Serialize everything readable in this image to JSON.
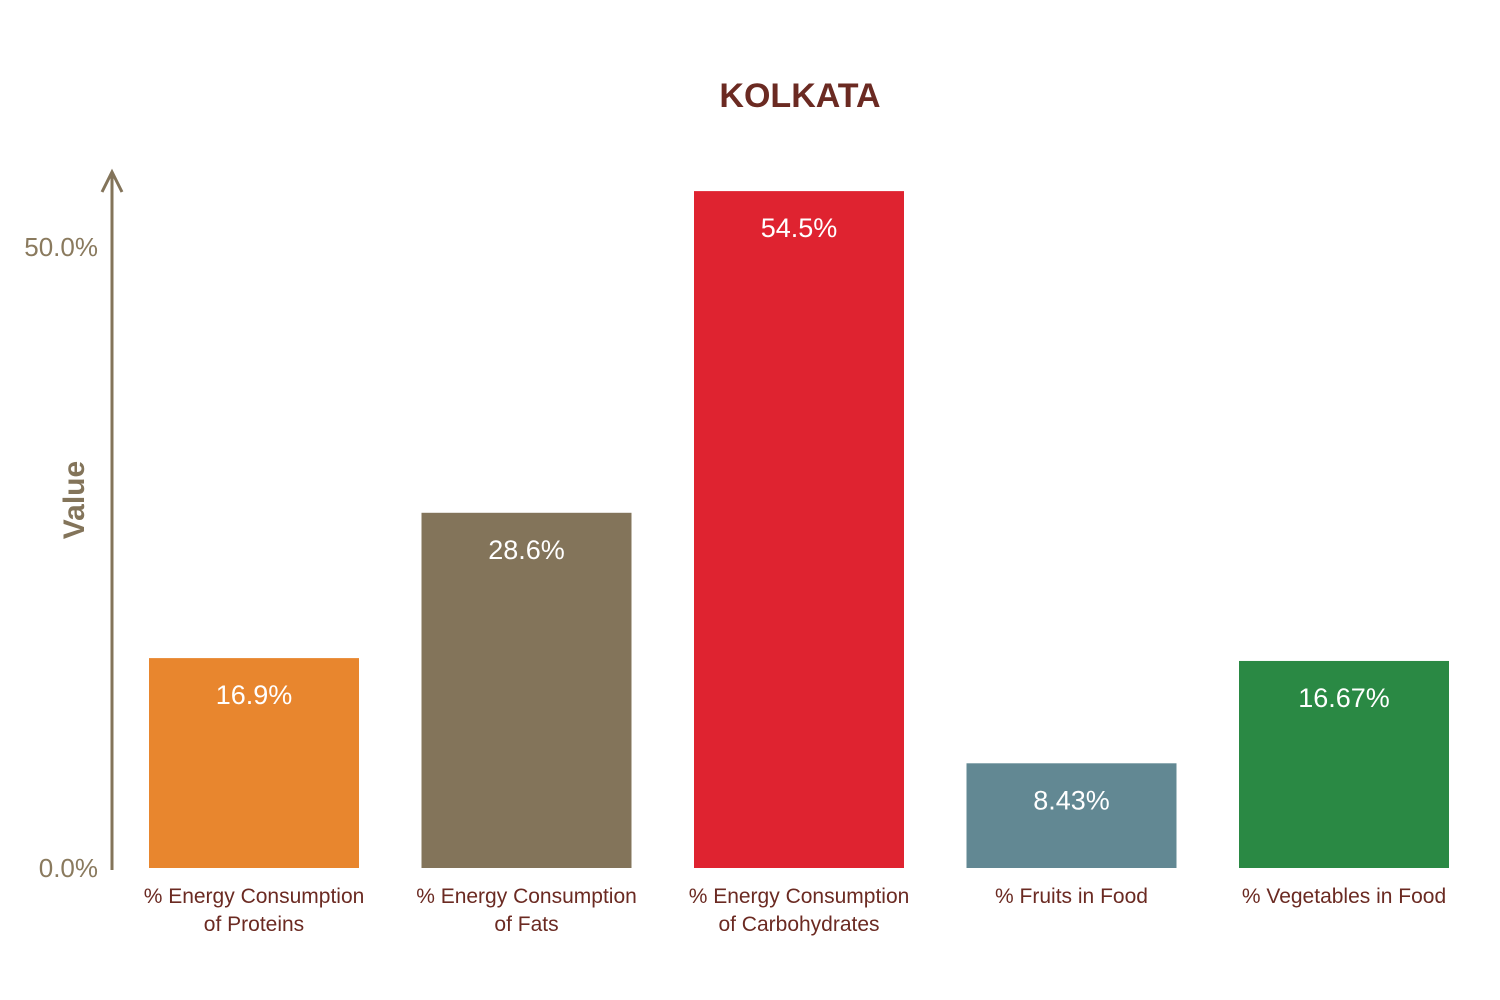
{
  "chart_data": {
    "type": "bar",
    "title": "KOLKATA",
    "ylabel": "Value",
    "xlabel": "",
    "ylim": [
      0,
      50
    ],
    "yticks": [
      {
        "value": 0,
        "label": "0.0%"
      },
      {
        "value": 50,
        "label": "50.0%"
      }
    ],
    "grid": false,
    "categories": [
      [
        "% Energy Consumption",
        "of Proteins"
      ],
      [
        "% Energy Consumption",
        "of Fats"
      ],
      [
        "% Energy Consumption",
        "of Carbohydrates"
      ],
      [
        "% Fruits in Food"
      ],
      [
        "% Vegetables in Food"
      ]
    ],
    "values": [
      16.9,
      28.6,
      54.5,
      8.43,
      16.67
    ],
    "value_labels": [
      "16.9%",
      "28.6%",
      "54.5%",
      "8.43%",
      "16.67%"
    ],
    "colors": [
      "#e8862e",
      "#83745a",
      "#df2330",
      "#628893",
      "#2a8944"
    ],
    "axis_color": "#83745a",
    "title_color": "#6b2a22",
    "category_label_color": "#6b2a22"
  }
}
